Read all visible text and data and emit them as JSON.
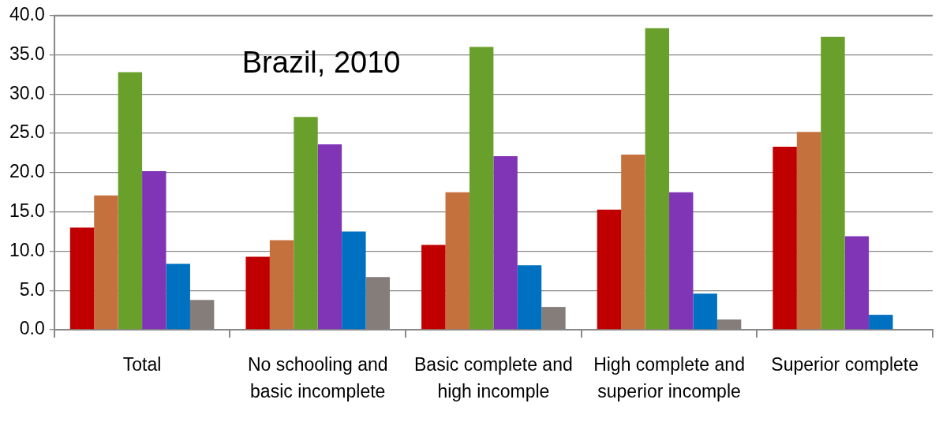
{
  "chart_data": {
    "type": "bar",
    "annotations": [
      "Brazil, 2010"
    ],
    "categories": [
      "Total",
      "No schooling and basic incomplete",
      "Basic complete and high incomple",
      "High complete and superior incomple",
      "Superior complete"
    ],
    "series": [
      {
        "color": "#c00000",
        "values": [
          13.0,
          9.3,
          10.8,
          15.3,
          23.3
        ]
      },
      {
        "color": "#c5713e",
        "values": [
          17.1,
          11.4,
          17.5,
          22.3,
          25.2
        ]
      },
      {
        "color": "#69a02c",
        "values": [
          32.8,
          27.1,
          36.0,
          38.4,
          37.3
        ]
      },
      {
        "color": "#7f35b5",
        "values": [
          20.2,
          23.6,
          22.1,
          17.5,
          11.9
        ]
      },
      {
        "color": "#0070c0",
        "values": [
          8.4,
          12.5,
          8.2,
          4.6,
          1.9
        ]
      },
      {
        "color": "#857d7a",
        "values": [
          3.8,
          6.7,
          2.9,
          1.3,
          null
        ]
      }
    ],
    "ylim": [
      0,
      40
    ],
    "yticks": [
      {
        "value": 0,
        "label": "0.0"
      },
      {
        "value": 5,
        "label": "5.0"
      },
      {
        "value": 10,
        "label": "10.0"
      },
      {
        "value": 15,
        "label": "15.0"
      },
      {
        "value": 20,
        "label": "20.0"
      },
      {
        "value": 25,
        "label": "25.0"
      },
      {
        "value": 30,
        "label": "30.0"
      },
      {
        "value": 35,
        "label": "35.0"
      },
      {
        "value": 40,
        "label": "40.0"
      }
    ],
    "grid": "y",
    "legend": false
  }
}
